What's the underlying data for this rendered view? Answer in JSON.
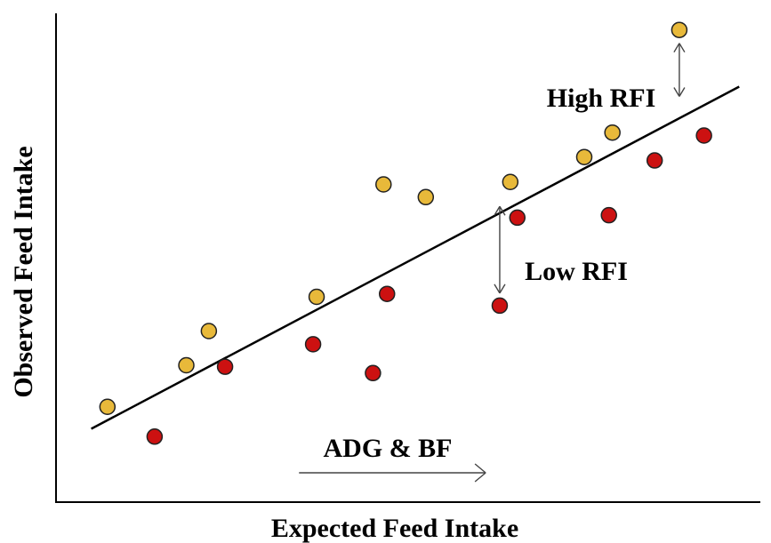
{
  "chart_data": {
    "type": "scatter",
    "xlabel": "Expected Feed Intake",
    "ylabel": "Observed Feed Intake",
    "xlim": [
      0,
      100
    ],
    "ylim": [
      0,
      100
    ],
    "grid": false,
    "regression_line": {
      "x": [
        5,
        97
      ],
      "y": [
        15,
        85
      ]
    },
    "series": [
      {
        "color": "#e8b93a",
        "points": [
          {
            "x": 7.3,
            "y": 19.5
          },
          {
            "x": 18.5,
            "y": 28.0
          },
          {
            "x": 21.7,
            "y": 35.0
          },
          {
            "x": 37.0,
            "y": 42.0
          },
          {
            "x": 46.5,
            "y": 65.0
          },
          {
            "x": 52.5,
            "y": 62.4
          },
          {
            "x": 64.5,
            "y": 65.5
          },
          {
            "x": 75.0,
            "y": 70.6
          },
          {
            "x": 79.0,
            "y": 75.6
          },
          {
            "x": 88.5,
            "y": 96.6
          }
        ]
      },
      {
        "color": "#cc1111",
        "points": [
          {
            "x": 14.0,
            "y": 13.4
          },
          {
            "x": 24.0,
            "y": 27.7
          },
          {
            "x": 36.5,
            "y": 32.3
          },
          {
            "x": 45.0,
            "y": 26.4
          },
          {
            "x": 47.0,
            "y": 42.6
          },
          {
            "x": 63.0,
            "y": 40.2
          },
          {
            "x": 65.5,
            "y": 58.2
          },
          {
            "x": 78.5,
            "y": 58.7
          },
          {
            "x": 85.0,
            "y": 69.9
          },
          {
            "x": 92.0,
            "y": 75.0
          }
        ]
      }
    ],
    "annotations": [
      {
        "text": "High RFI",
        "between": {
          "x": 88.5,
          "y_from": 96.6,
          "y_to": 83.0
        }
      },
      {
        "text": "Low RFI",
        "between": {
          "x": 63.0,
          "y_from": 40.2,
          "y_to": 60.5
        }
      },
      {
        "text": "ADG & BF",
        "arrow": "right",
        "arrow_from_x": 34.5,
        "arrow_to_x": 61.0,
        "y": 6.0
      }
    ]
  }
}
